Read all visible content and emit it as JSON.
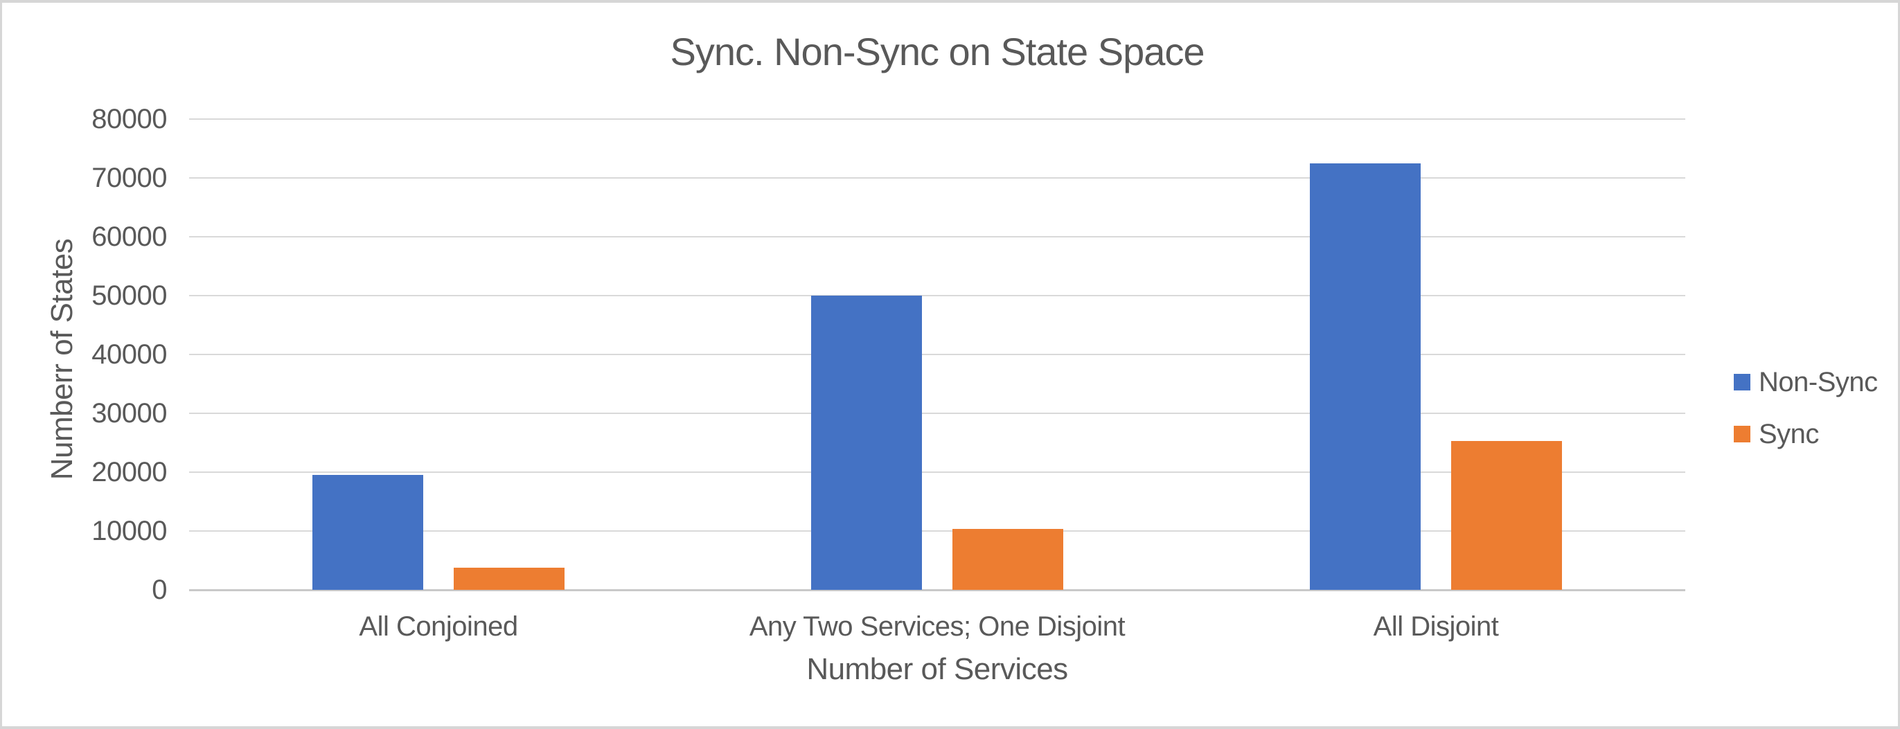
{
  "window": {
    "background": "#FFFFFF",
    "border_color": "#D6D6D6"
  },
  "chart_data": {
    "type": "bar",
    "title": "Sync. Non-Sync on State Space",
    "xlabel": "Number of Services",
    "ylabel": "Numberr of States",
    "categories": [
      "All Conjoined",
      "Any Two Services; One Disjoint",
      "All Disjoint"
    ],
    "series": [
      {
        "name": "Non-Sync",
        "color": "#4472C4",
        "values": [
          19500,
          50000,
          72500
        ]
      },
      {
        "name": "Sync",
        "color": "#ED7D31",
        "values": [
          3800,
          10400,
          25300
        ]
      }
    ],
    "ylim": [
      0,
      80000
    ],
    "ytick_step": 10000,
    "yticks": [
      0,
      10000,
      20000,
      30000,
      40000,
      50000,
      60000,
      70000,
      80000
    ],
    "grid": true,
    "gridline_color": "#D9D9D9",
    "axis_line_color": "#C9C9C9",
    "text_color": "#595959",
    "legend_position": "right"
  }
}
